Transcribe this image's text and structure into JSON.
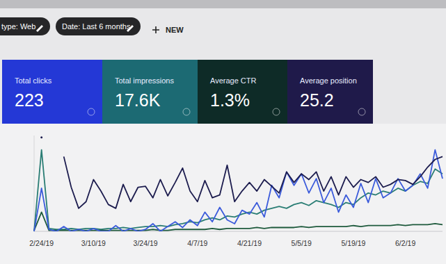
{
  "filters": [
    "type: Web",
    "Date: Last 6 months"
  ],
  "new_button": "NEW",
  "cards": [
    {
      "value": "223"
    },
    {
      "value": "17.6K"
    },
    {
      "value": "1.3%"
    },
    {
      "value": "25.2"
    }
  ],
  "chart_data": {
    "type": "line",
    "categories": [
      null,
      "2/24/19",
      null,
      null,
      null,
      null,
      null,
      null,
      "3/10/19",
      null,
      null,
      null,
      null,
      null,
      null,
      "3/24/19",
      null,
      null,
      null,
      null,
      null,
      null,
      "4/7/19",
      null,
      null,
      null,
      null,
      null,
      null,
      "4/21/19",
      null,
      null,
      null,
      null,
      null,
      null,
      "5/5/19",
      null,
      null,
      null,
      null,
      null,
      null,
      "5/19/19",
      null,
      null,
      null,
      null,
      null,
      null,
      "6/2/19",
      null,
      null,
      null,
      null,
      null
    ],
    "ylim": [
      0,
      100
    ],
    "tick_labels": "x",
    "grid": false,
    "series": [
      {
        "name": "Total clicks",
        "color": "#3b5bdb",
        "values": [
          0,
          45,
          2,
          0,
          5,
          0,
          2,
          0,
          3,
          0,
          0,
          6,
          0,
          3,
          0,
          2,
          8,
          0,
          5,
          10,
          4,
          12,
          6,
          20,
          10,
          25,
          12,
          8,
          22,
          18,
          30,
          15,
          48,
          35,
          62,
          48,
          60,
          40,
          55,
          30,
          45,
          20,
          38,
          25,
          50,
          30,
          55,
          35,
          40,
          55,
          42,
          48,
          60,
          45,
          85,
          55
        ]
      },
      {
        "name": "Total impressions",
        "color": "#2a7d74",
        "values": [
          0,
          85,
          3,
          2,
          2,
          3,
          2,
          3,
          3,
          2,
          3,
          3,
          4,
          3,
          4,
          5,
          5,
          6,
          5,
          7,
          8,
          10,
          9,
          12,
          14,
          12,
          16,
          15,
          18,
          20,
          18,
          22,
          24,
          26,
          24,
          28,
          30,
          27,
          32,
          30,
          28,
          25,
          30,
          28,
          35,
          40,
          38,
          42,
          40,
          45,
          42,
          48,
          52,
          50,
          65,
          60
        ]
      },
      {
        "name": "Average CTR",
        "color": "#1e5a3c",
        "values": [
          1,
          20,
          1,
          1,
          1,
          1,
          1,
          1,
          1,
          1,
          1,
          1,
          1,
          1,
          1,
          1,
          2,
          1,
          1,
          2,
          2,
          2,
          2,
          2,
          3,
          2,
          3,
          3,
          3,
          3,
          4,
          3,
          4,
          4,
          4,
          4,
          5,
          4,
          5,
          5,
          5,
          5,
          5,
          6,
          5,
          6,
          6,
          6,
          6,
          7,
          6,
          7,
          7,
          7,
          8,
          7
        ]
      },
      {
        "name": "Average position",
        "color": "#1c1c4e",
        "values": [
          null,
          98,
          null,
          null,
          78,
          46,
          24,
          31,
          54,
          42,
          28,
          24,
          49,
          31,
          46,
          47,
          35,
          54,
          37,
          51,
          66,
          42,
          31,
          53,
          35,
          38,
          69,
          31,
          42,
          51,
          42,
          54,
          47,
          40,
          62,
          51,
          60,
          54,
          62,
          42,
          57,
          38,
          57,
          46,
          54,
          51,
          57,
          46,
          49,
          54,
          53,
          49,
          57,
          67,
          75,
          78
        ]
      }
    ]
  }
}
